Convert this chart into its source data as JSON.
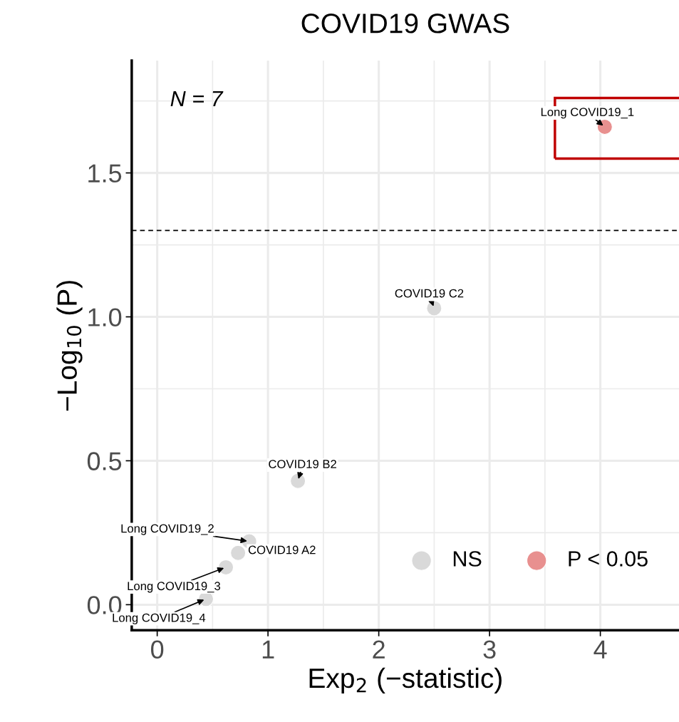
{
  "chart_data": {
    "type": "scatter",
    "title": "COVID19 GWAS",
    "xlabel": "Exp$_{2}$ (−statistic)",
    "ylabel": "−Log$_{10}$ (P)",
    "series": [
      {
        "name": "NS",
        "color": "#d9d9d9",
        "x": [
          2.5,
          1.27,
          0.83,
          0.73,
          0.62,
          0.44
        ],
        "values": [
          1.03,
          0.43,
          0.22,
          0.18,
          0.13,
          0.02
        ]
      },
      {
        "name": "P < 0.05",
        "color": "#e8908f",
        "x": [
          4.04
        ],
        "values": [
          1.66
        ]
      }
    ],
    "xlim": [
      -0.23,
      4.71
    ],
    "xticks": [
      0,
      1,
      2,
      3,
      4
    ],
    "ylim": [
      -0.089,
      1.89
    ],
    "yticks": [
      {
        "value": 0,
        "label": "0.0"
      },
      0.5,
      {
        "value": 1,
        "label": "1.0"
      },
      1.5
    ],
    "ref_lines": [
      {
        "axis": "y",
        "value": 1.3,
        "line_style": "dashed",
        "color": "#000000"
      }
    ],
    "annotations": [
      "N = 7",
      {
        "text": "COVID19 C2",
        "x": 2.5,
        "y": 1.03
      },
      {
        "text": "COVID19 B2",
        "x": 1.27,
        "y": 0.43
      },
      {
        "text": "Long COVID19_2",
        "x": 0.83,
        "y": 0.22
      },
      {
        "text": "COVID19 A2",
        "x": 0.73,
        "y": 0.18
      },
      {
        "text": "Long COVID19_3",
        "x": 0.62,
        "y": 0.13
      },
      {
        "text": "Long COVID19_4",
        "x": 0.44,
        "y": 0.02
      },
      {
        "text": "Long COVID19_1",
        "x": 4.04,
        "y": 1.66
      }
    ],
    "grid": true,
    "legend": "bottom right",
    "marker": "circle"
  }
}
